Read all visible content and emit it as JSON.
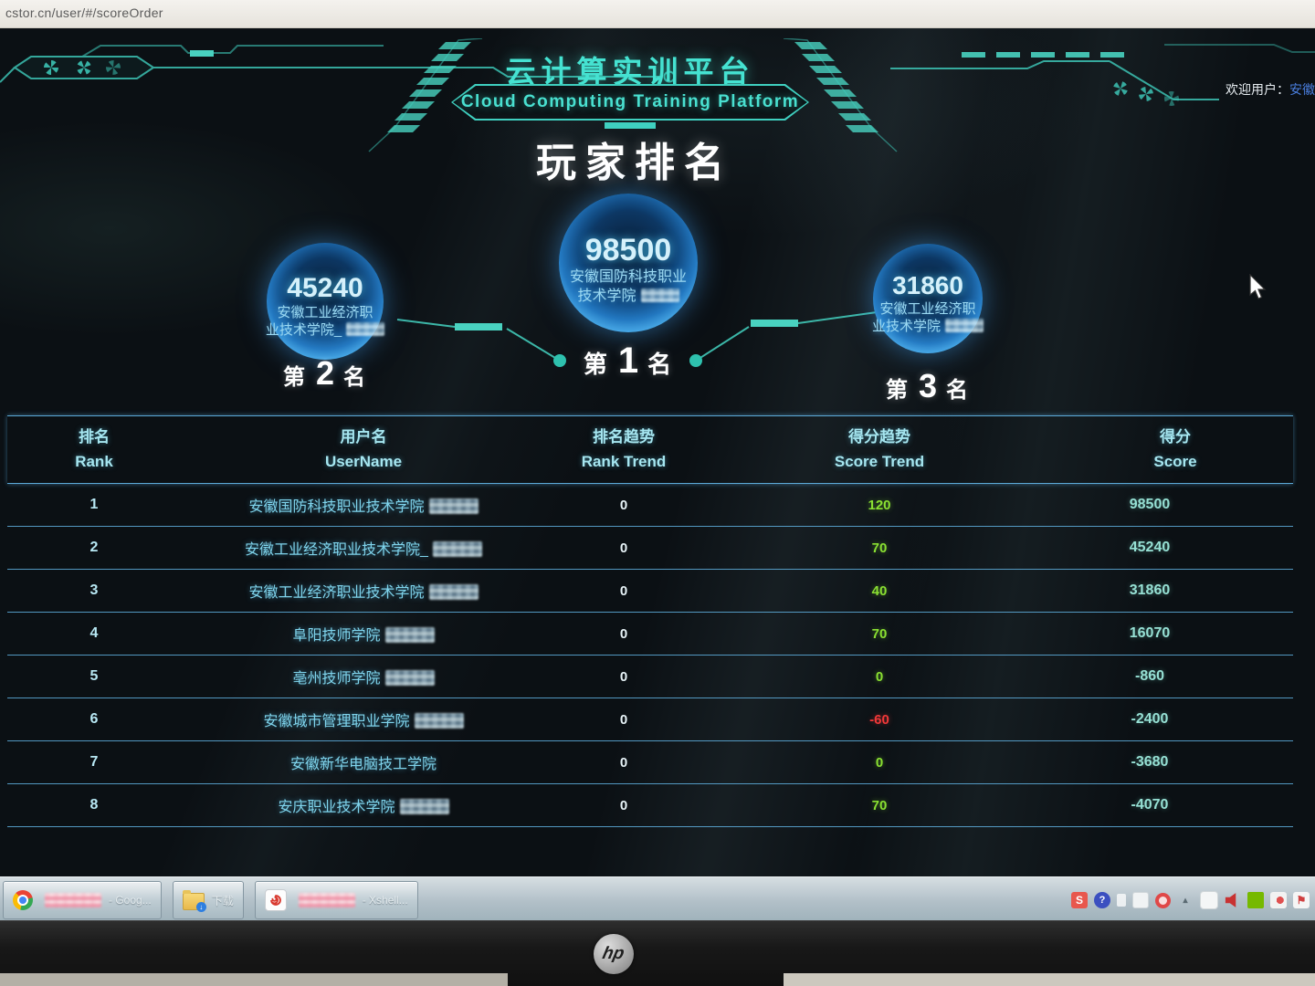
{
  "browser": {
    "url": "cstor.cn/user/#/scoreOrder"
  },
  "header": {
    "title_cn": "云计算实训平台",
    "title_en": "Cloud Computing Training Platform",
    "welcome_label": "欢迎用户：",
    "welcome_user": "安徽"
  },
  "page": {
    "title": "玩家排名"
  },
  "podium": [
    {
      "place_prefix": "第",
      "place": "1",
      "place_suffix": "名",
      "score": "98500",
      "name_line1": "安徽国防科技职业",
      "name_line2": "技术学院",
      "redacted": true
    },
    {
      "place_prefix": "第",
      "place": "2",
      "place_suffix": "名",
      "score": "45240",
      "name_line1": "安徽工业经济职",
      "name_line2": "业技术学院_",
      "redacted": true
    },
    {
      "place_prefix": "第",
      "place": "3",
      "place_suffix": "名",
      "score": "31860",
      "name_line1": "安徽工业经济职",
      "name_line2": "业技术学院",
      "redacted": true
    }
  ],
  "table": {
    "columns": [
      {
        "cn": "排名",
        "en": "Rank"
      },
      {
        "cn": "用户名",
        "en": "UserName"
      },
      {
        "cn": "排名趋势",
        "en": "Rank Trend"
      },
      {
        "cn": "得分趋势",
        "en": "Score Trend"
      },
      {
        "cn": "得分",
        "en": "Score"
      }
    ],
    "rows": [
      {
        "rank": "1",
        "name": "安徽国防科技职业技术学院",
        "redacted": true,
        "rank_trend": "0",
        "score_trend": "120",
        "trend": "green",
        "score": "98500"
      },
      {
        "rank": "2",
        "name": "安徽工业经济职业技术学院_",
        "redacted": true,
        "rank_trend": "0",
        "score_trend": "70",
        "trend": "green",
        "score": "45240"
      },
      {
        "rank": "3",
        "name": "安徽工业经济职业技术学院",
        "redacted": true,
        "rank_trend": "0",
        "score_trend": "40",
        "trend": "green",
        "score": "31860"
      },
      {
        "rank": "4",
        "name": "阜阳技师学院",
        "redacted": true,
        "rank_trend": "0",
        "score_trend": "70",
        "trend": "green",
        "score": "16070"
      },
      {
        "rank": "5",
        "name": "亳州技师学院",
        "redacted": true,
        "rank_trend": "0",
        "score_trend": "0",
        "trend": "green",
        "score": "-860"
      },
      {
        "rank": "6",
        "name": "安徽城市管理职业学院",
        "redacted": true,
        "rank_trend": "0",
        "score_trend": "-60",
        "trend": "red",
        "score": "-2400"
      },
      {
        "rank": "7",
        "name": "安徽新华电脑技工学院",
        "redacted": false,
        "rank_trend": "0",
        "score_trend": "0",
        "trend": "green",
        "score": "-3680"
      },
      {
        "rank": "8",
        "name": "安庆职业技术学院",
        "redacted": true,
        "rank_trend": "0",
        "score_trend": "70",
        "trend": "green",
        "score": "-4070"
      }
    ]
  },
  "taskbar": {
    "buttons": [
      {
        "name": "chrome-task-button",
        "icon": "chrome",
        "redacted": true,
        "label": "- Goog..."
      },
      {
        "name": "downloads-task-button",
        "icon": "folder-download",
        "redacted": false,
        "label": "下载"
      },
      {
        "name": "xshell-task-button",
        "icon": "xshell",
        "redacted": true,
        "label": "- Xshell..."
      }
    ],
    "tray": [
      {
        "name": "sogou-icon",
        "glyph": "S",
        "style": "sogou"
      },
      {
        "name": "help-icon",
        "glyph": "?",
        "style": "help"
      },
      {
        "name": "tray-white-icon",
        "glyph": "",
        "style": "ghost"
      },
      {
        "name": "ime-icon",
        "glyph": "",
        "style": "ime"
      },
      {
        "name": "record-ring-icon",
        "glyph": "",
        "style": "ring"
      },
      {
        "name": "hidden-icons-chevron",
        "glyph": "▴",
        "style": "chevron"
      },
      {
        "name": "tray-app-icon",
        "glyph": "",
        "style": "notify"
      },
      {
        "name": "volume-icon",
        "glyph": "",
        "style": "speaker"
      },
      {
        "name": "nvidia-icon",
        "glyph": "",
        "style": "nvidia"
      },
      {
        "name": "tray-tool-icon",
        "glyph": "",
        "style": "tool"
      },
      {
        "name": "flag-icon",
        "glyph": "⚑",
        "style": "flag"
      }
    ]
  },
  "monitor": {
    "brand": "hp"
  },
  "colors": {
    "accent": "#41d6c3",
    "table_line": "#64b9eb",
    "trend_green": "#8ae032",
    "trend_red": "#f03838",
    "score_text": "#96e0d4",
    "link_blue": "#4a7fe0"
  }
}
